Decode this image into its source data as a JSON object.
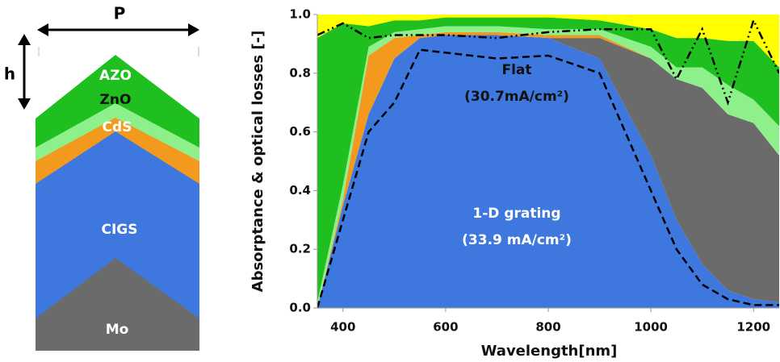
{
  "diagram": {
    "period": "P",
    "height": "h",
    "layers": [
      "AZO",
      "ZnO",
      "CdS",
      "CIGS",
      "Mo"
    ]
  },
  "chart_data": {
    "type": "area",
    "stacked": true,
    "xlabel": "Wavelength[nm]",
    "ylabel": "Absorptance & optical losses [-]",
    "annotations": [
      "Flat",
      "(30.7mA/cm²)",
      "1-D grating",
      "(33.9 mA/cm²)"
    ],
    "x": [
      350,
      400,
      450,
      500,
      550,
      600,
      700,
      800,
      900,
      1000,
      1050,
      1100,
      1150,
      1200,
      1250
    ],
    "series": [
      {
        "color": "#3e78df",
        "values": [
          0,
          0.35,
          0.66,
          0.85,
          0.92,
          0.93,
          0.93,
          0.92,
          0.85,
          0.52,
          0.3,
          0.15,
          0.06,
          0.03,
          0.02
        ]
      },
      {
        "color": "#6b6b6b",
        "values": [
          0,
          0,
          0,
          0,
          0,
          0,
          0,
          0,
          0.07,
          0.33,
          0.48,
          0.6,
          0.6,
          0.6,
          0.5
        ]
      },
      {
        "color": "#f39a1e",
        "values": [
          0,
          0.02,
          0.2,
          0.07,
          0.01,
          0.01,
          0.01,
          0.01,
          0.01,
          0,
          0,
          0,
          0,
          0,
          0
        ]
      },
      {
        "color": "#8ef08b",
        "values": [
          0.02,
          0.05,
          0.03,
          0.02,
          0.02,
          0.02,
          0.02,
          0.02,
          0.02,
          0.04,
          0.04,
          0.07,
          0.1,
          0.08,
          0.1
        ]
      },
      {
        "color": "#1fbf1f",
        "values": [
          0.9,
          0.55,
          0.07,
          0.04,
          0.03,
          0.03,
          0.03,
          0.04,
          0.03,
          0.06,
          0.1,
          0.1,
          0.15,
          0.2,
          0.2
        ]
      },
      {
        "color": "#ffff00",
        "values": [
          0.08,
          0.03,
          0.04,
          0.02,
          0.02,
          0.01,
          0.01,
          0.01,
          0.02,
          0.05,
          0.08,
          0.08,
          0.09,
          0.09,
          0.18
        ]
      }
    ],
    "lines": [
      {
        "color": "#000000",
        "dash": "9 5",
        "values": [
          0,
          0.3,
          0.6,
          0.7,
          0.88,
          0.87,
          0.85,
          0.86,
          0.8,
          0.4,
          0.2,
          0.08,
          0.03,
          0.01,
          0.01
        ]
      },
      {
        "color": "#000000",
        "dash": "10 4 2 4 2 4",
        "values": [
          0.93,
          0.97,
          0.92,
          0.93,
          0.93,
          0.93,
          0.92,
          0.94,
          0.95,
          0.95,
          0.78,
          0.95,
          0.7,
          0.98,
          0.8
        ]
      }
    ],
    "xlim": [
      350,
      1250
    ],
    "ylim": [
      0,
      1
    ],
    "xticks": [
      400,
      600,
      800,
      1000,
      1200
    ],
    "yticks": [
      {
        "value": 0,
        "label": "0.0"
      },
      0.2,
      0.4,
      0.6,
      0.8,
      {
        "value": 1,
        "label": "1.0"
      }
    ]
  }
}
